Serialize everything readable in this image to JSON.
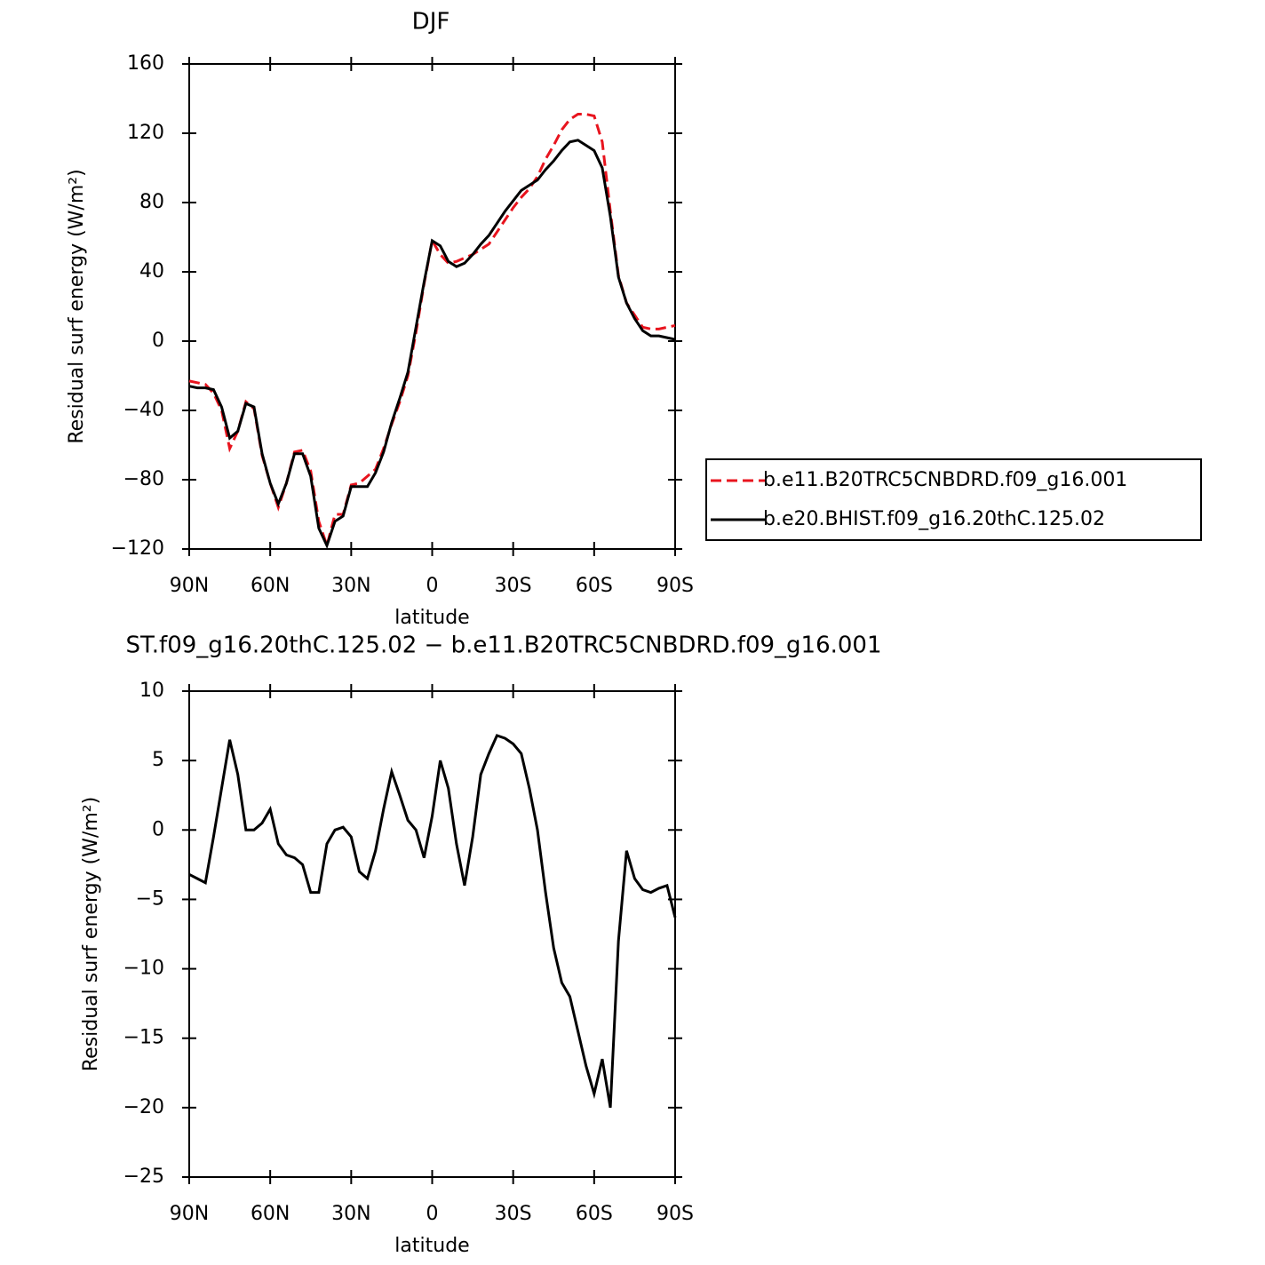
{
  "chart_data": [
    {
      "type": "line",
      "title": "DJF",
      "xlabel": "latitude",
      "ylabel": "Residual surf energy (W/m²)",
      "x": [
        90,
        87,
        84,
        81,
        78,
        75,
        72,
        69,
        66,
        63,
        60,
        57,
        54,
        51,
        48,
        45,
        42,
        39,
        36,
        33,
        30,
        27,
        24,
        21,
        18,
        15,
        12,
        9,
        6,
        3,
        0,
        -3,
        -6,
        -9,
        -12,
        -15,
        -18,
        -21,
        -24,
        -27,
        -30,
        -33,
        -36,
        -39,
        -42,
        -45,
        -48,
        -51,
        -54,
        -57,
        -60,
        -63,
        -66,
        -69,
        -72,
        -75,
        -78,
        -81,
        -84,
        -87,
        -90
      ],
      "series": [
        {
          "name": "b.e11.B20TRC5CNBDRD.f09_g16.001",
          "color": "#e8141e",
          "dash": "dashed",
          "values": [
            -23,
            -24,
            -25,
            -30,
            -40,
            -62,
            -52,
            -35,
            -39,
            -66,
            -82,
            -96,
            -82,
            -64,
            -63,
            -75,
            -104,
            -118,
            -100,
            -100,
            -83,
            -82,
            -78,
            -74,
            -62,
            -48,
            -35,
            -20,
            5,
            33,
            58,
            50,
            45,
            46,
            48,
            50,
            53,
            56,
            63,
            70,
            77,
            83,
            88,
            95,
            105,
            113,
            122,
            128,
            131,
            131,
            130,
            115,
            75,
            38,
            22,
            15,
            8,
            7,
            7,
            8,
            9
          ]
        },
        {
          "name": "b.e20.BHIST.f09_g16.20thC.125.02",
          "color": "#000000",
          "dash": "solid",
          "values": [
            -26,
            -27,
            -27,
            -28,
            -38,
            -56,
            -52,
            -36,
            -38,
            -65,
            -82,
            -94,
            -82,
            -65,
            -65,
            -78,
            -108,
            -118,
            -104,
            -101,
            -84,
            -84,
            -84,
            -76,
            -64,
            -47,
            -33,
            -18,
            8,
            34,
            58,
            55,
            46,
            43,
            45,
            50,
            56,
            61,
            68,
            75,
            81,
            87,
            90,
            93,
            99,
            104,
            110,
            115,
            116,
            113,
            110,
            100,
            72,
            37,
            22,
            13,
            6,
            3,
            3,
            2,
            1
          ]
        }
      ],
      "xlim": [
        90,
        -90
      ],
      "xticks": [
        {
          "value": 90,
          "label": "90N"
        },
        {
          "value": 60,
          "label": "60N"
        },
        {
          "value": 30,
          "label": "30N"
        },
        0,
        {
          "value": -30,
          "label": "30S"
        },
        {
          "value": -60,
          "label": "60S"
        },
        {
          "value": -90,
          "label": "90S"
        }
      ],
      "ylim": [
        -120,
        160
      ],
      "yticks": [
        {
          "value": -120,
          "label": "−120"
        },
        {
          "value": -80,
          "label": "−80"
        },
        {
          "value": -40,
          "label": "−40"
        },
        0,
        40,
        80,
        120,
        160
      ],
      "legend": "right"
    },
    {
      "type": "line",
      "title": "ST.f09_g16.20thC.125.02 − b.e11.B20TRC5CNBDRD.f09_g16.001",
      "xlabel": "latitude",
      "ylabel": "Residual surf energy (W/m²)",
      "x": [
        90,
        87,
        84,
        81,
        78,
        75,
        72,
        69,
        66,
        63,
        60,
        57,
        54,
        51,
        48,
        45,
        42,
        39,
        36,
        33,
        30,
        27,
        24,
        21,
        18,
        15,
        12,
        9,
        6,
        3,
        0,
        -3,
        -6,
        -9,
        -12,
        -15,
        -18,
        -21,
        -24,
        -27,
        -30,
        -33,
        -36,
        -39,
        -42,
        -45,
        -48,
        -51,
        -54,
        -57,
        -60,
        -63,
        -66,
        -69,
        -72,
        -75,
        -78,
        -81,
        -84,
        -87,
        -90
      ],
      "series": [
        {
          "color": "#000000",
          "dash": "solid",
          "values": [
            -3.2,
            -3.5,
            -3.8,
            -0.5,
            3,
            6.5,
            4,
            0,
            0,
            0.5,
            1.5,
            -1,
            -1.8,
            -2,
            -2.5,
            -4.5,
            -4.5,
            -1,
            0,
            0.2,
            -0.5,
            -3,
            -3.5,
            -1.5,
            1.5,
            4.2,
            2.5,
            0.7,
            0,
            -2,
            1,
            5,
            3,
            -1,
            -4,
            -0.5,
            4,
            5.5,
            6.8,
            6.6,
            6.2,
            5.5,
            3,
            0,
            -4.5,
            -8.5,
            -11,
            -12,
            -14.5,
            -17,
            -19,
            -16.5,
            -20,
            -8,
            -1.5,
            -3.5,
            -4.3,
            -4.5,
            -4.2,
            -4,
            -6.3
          ]
        }
      ],
      "xlim": [
        90,
        -90
      ],
      "xticks": [
        {
          "value": 90,
          "label": "90N"
        },
        {
          "value": 60,
          "label": "60N"
        },
        {
          "value": 30,
          "label": "30N"
        },
        0,
        {
          "value": -30,
          "label": "30S"
        },
        {
          "value": -60,
          "label": "60S"
        },
        {
          "value": -90,
          "label": "90S"
        }
      ],
      "ylim": [
        -25,
        10
      ],
      "yticks": [
        {
          "value": -25,
          "label": "−25"
        },
        {
          "value": -20,
          "label": "−20"
        },
        {
          "value": -15,
          "label": "−15"
        },
        {
          "value": -10,
          "label": "−10"
        },
        {
          "value": -5,
          "label": "−5"
        },
        0,
        5,
        10
      ]
    }
  ]
}
